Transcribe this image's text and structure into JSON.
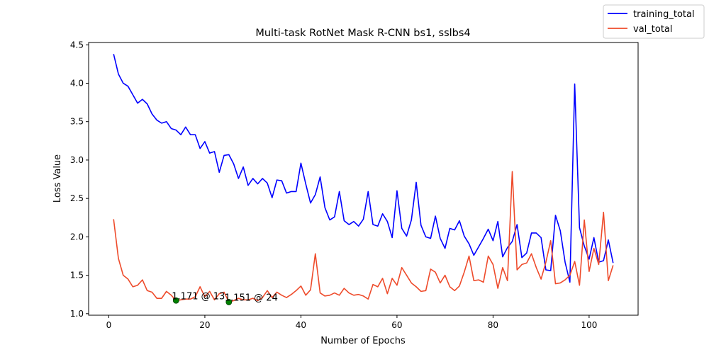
{
  "chart_data": {
    "type": "line",
    "title": "Multi-task RotNet Mask R-CNN bs1, sslbs4",
    "xlabel": "Number of Epochs",
    "ylabel": "Loss Value",
    "xlim": [
      -4.2,
      110.2
    ],
    "ylim": [
      0.98,
      4.53
    ],
    "xticks": [
      0,
      20,
      40,
      60,
      80,
      100
    ],
    "yticks": [
      1.0,
      1.5,
      2.0,
      2.5,
      3.0,
      3.5,
      4.0,
      4.5
    ],
    "ytick_labels": [
      "1.0",
      "1.5",
      "2.0",
      "2.5",
      "3.0",
      "3.5",
      "4.0",
      "4.5"
    ],
    "legend_position": "top-right (outside plot)",
    "grid": false,
    "x": [
      1,
      2,
      3,
      4,
      5,
      6,
      7,
      8,
      9,
      10,
      11,
      12,
      13,
      14,
      15,
      16,
      17,
      18,
      19,
      20,
      21,
      22,
      23,
      24,
      25,
      26,
      27,
      28,
      29,
      30,
      31,
      32,
      33,
      34,
      35,
      36,
      37,
      38,
      39,
      40,
      41,
      42,
      43,
      44,
      45,
      46,
      47,
      48,
      49,
      50,
      51,
      52,
      53,
      54,
      55,
      56,
      57,
      58,
      59,
      60,
      61,
      62,
      63,
      64,
      65,
      66,
      67,
      68,
      69,
      70,
      71,
      72,
      73,
      74,
      75,
      76,
      77,
      78,
      79,
      80,
      81,
      82,
      83,
      84,
      85,
      86,
      87,
      88,
      89,
      90,
      91,
      92,
      93,
      94,
      95,
      96,
      97,
      98,
      99,
      100,
      101,
      102,
      103,
      104,
      105
    ],
    "series": [
      {
        "name": "training_total",
        "color": "#0000ff",
        "values": [
          4.38,
          4.12,
          4.0,
          3.96,
          3.85,
          3.74,
          3.79,
          3.73,
          3.6,
          3.52,
          3.48,
          3.5,
          3.41,
          3.39,
          3.33,
          3.43,
          3.33,
          3.33,
          3.15,
          3.24,
          3.09,
          3.11,
          2.84,
          3.06,
          3.07,
          2.95,
          2.76,
          2.91,
          2.67,
          2.76,
          2.69,
          2.76,
          2.7,
          2.51,
          2.74,
          2.73,
          2.57,
          2.59,
          2.59,
          2.96,
          2.69,
          2.44,
          2.55,
          2.78,
          2.38,
          2.22,
          2.26,
          2.59,
          2.21,
          2.16,
          2.2,
          2.14,
          2.23,
          2.59,
          2.16,
          2.14,
          2.3,
          2.2,
          1.99,
          2.6,
          2.11,
          2.01,
          2.22,
          2.71,
          2.15,
          2.0,
          1.98,
          2.27,
          1.98,
          1.85,
          2.11,
          2.09,
          2.21,
          2.01,
          1.91,
          1.76,
          1.87,
          1.98,
          2.1,
          1.95,
          2.2,
          1.74,
          1.86,
          1.94,
          2.16,
          1.73,
          1.79,
          2.05,
          2.05,
          1.99,
          1.57,
          1.56,
          2.28,
          2.08,
          1.67,
          1.41,
          3.99,
          2.12,
          1.88,
          1.71,
          1.99,
          1.67,
          1.69,
          1.96,
          1.66
        ]
      },
      {
        "name": "val_total",
        "color": "#ee4b2b",
        "values": [
          2.23,
          1.72,
          1.5,
          1.45,
          1.35,
          1.37,
          1.44,
          1.3,
          1.28,
          1.2,
          1.2,
          1.29,
          1.24,
          1.171,
          1.18,
          1.19,
          1.19,
          1.22,
          1.35,
          1.22,
          1.29,
          1.18,
          1.26,
          1.28,
          1.151,
          1.17,
          1.2,
          1.18,
          1.18,
          1.2,
          1.17,
          1.21,
          1.3,
          1.21,
          1.28,
          1.24,
          1.21,
          1.25,
          1.3,
          1.36,
          1.24,
          1.31,
          1.78,
          1.27,
          1.23,
          1.24,
          1.27,
          1.24,
          1.33,
          1.27,
          1.24,
          1.25,
          1.23,
          1.19,
          1.38,
          1.35,
          1.46,
          1.26,
          1.46,
          1.37,
          1.6,
          1.5,
          1.4,
          1.35,
          1.29,
          1.3,
          1.58,
          1.54,
          1.4,
          1.5,
          1.35,
          1.3,
          1.36,
          1.54,
          1.75,
          1.43,
          1.44,
          1.41,
          1.75,
          1.64,
          1.33,
          1.6,
          1.43,
          2.85,
          1.57,
          1.64,
          1.66,
          1.78,
          1.6,
          1.45,
          1.67,
          1.95,
          1.39,
          1.4,
          1.44,
          1.5,
          1.68,
          1.37,
          2.22,
          1.55,
          1.85,
          1.64,
          2.32,
          1.43,
          1.63
        ]
      }
    ],
    "annotations": [
      {
        "x": 14,
        "y": 1.171,
        "text": "1.171 @ 13"
      },
      {
        "x": 25,
        "y": 1.151,
        "text": "1.151 @ 24"
      }
    ]
  }
}
